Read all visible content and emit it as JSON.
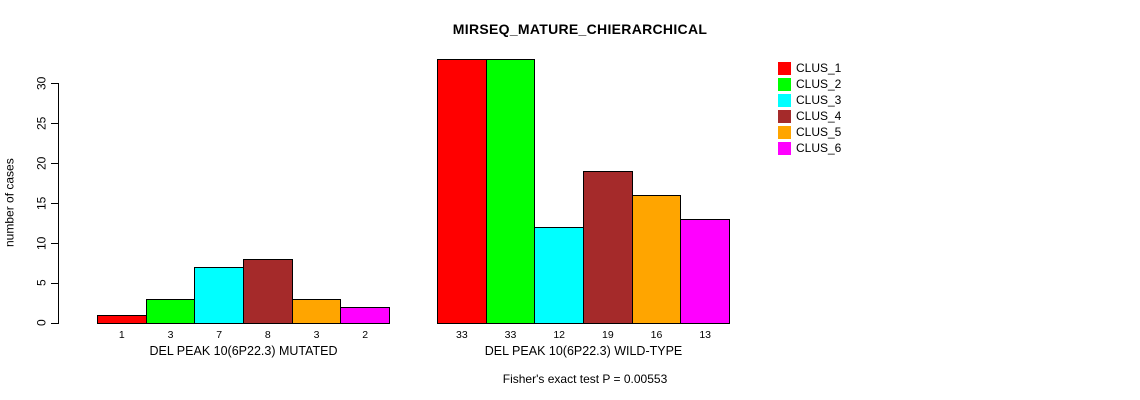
{
  "chart_data": {
    "type": "bar",
    "title": "MIRSEQ_MATURE_CHIERARCHICAL",
    "ylabel": "number of cases",
    "xlabel": "",
    "ylim": [
      0,
      33
    ],
    "yticks": [
      0,
      5,
      10,
      15,
      20,
      25,
      30
    ],
    "grid": false,
    "legend_position": "right-outside",
    "series": [
      {
        "name": "CLUS_1",
        "color": "#FF0000"
      },
      {
        "name": "CLUS_2",
        "color": "#00FF00"
      },
      {
        "name": "CLUS_3",
        "color": "#00FFFF"
      },
      {
        "name": "CLUS_4",
        "color": "#A52A2A"
      },
      {
        "name": "CLUS_5",
        "color": "#FFA500"
      },
      {
        "name": "CLUS_6",
        "color": "#FF00FF"
      }
    ],
    "groups": [
      {
        "label": "DEL PEAK 10(6P22.3) MUTATED",
        "values": [
          1,
          3,
          7,
          8,
          3,
          2
        ]
      },
      {
        "label": "DEL PEAK 10(6P22.3) WILD-TYPE",
        "values": [
          33,
          33,
          12,
          19,
          16,
          13
        ]
      }
    ],
    "annotation": "Fisher's exact test P = 0.00553"
  }
}
